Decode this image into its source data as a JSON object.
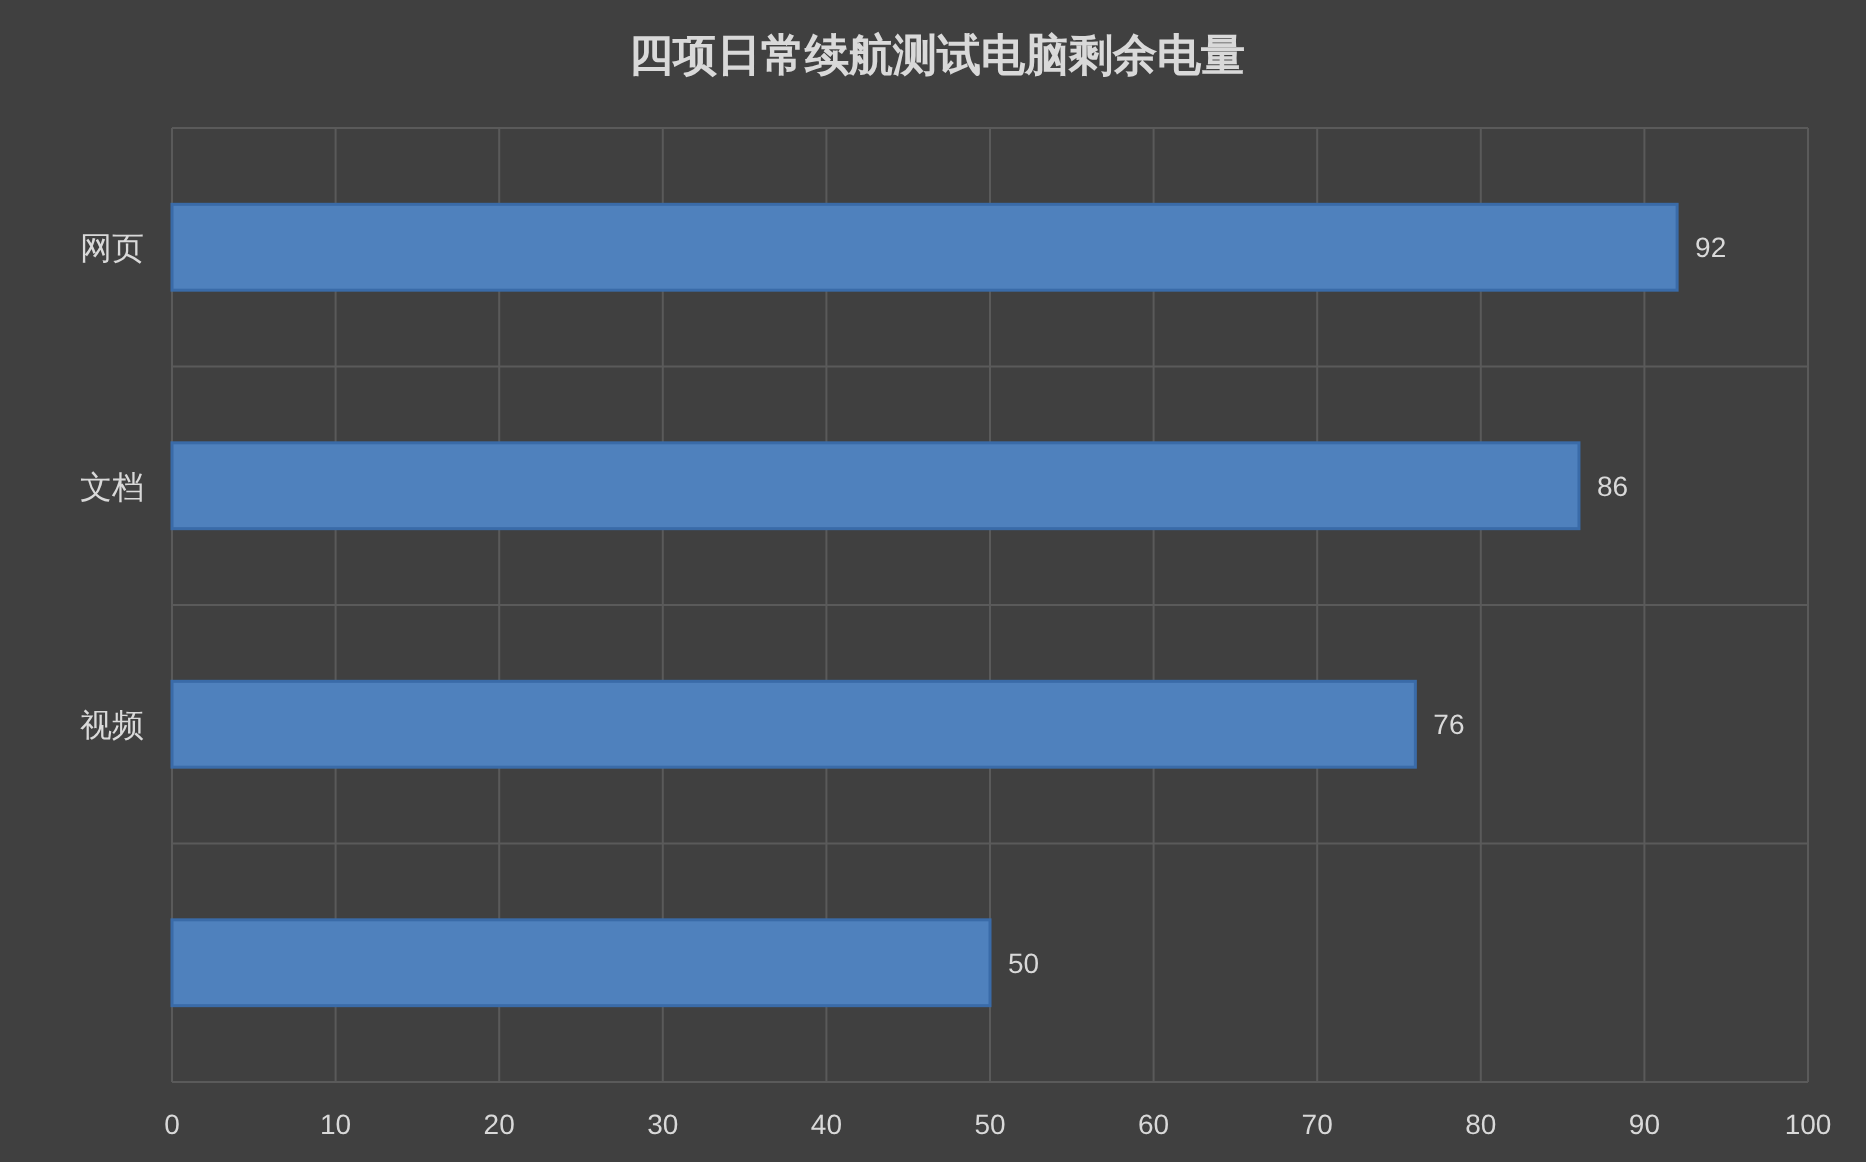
{
  "chart_data": {
    "type": "bar",
    "orientation": "horizontal",
    "title": "四项日常续航测试电脑剩余电量",
    "categories": [
      "网页",
      "文档",
      "视频",
      null
    ],
    "values": [
      92,
      86,
      76,
      50
    ],
    "color": "#4f81bd",
    "xlim": [
      0,
      100
    ],
    "xticks": [
      0,
      10,
      20,
      30,
      40,
      50,
      60,
      70,
      80,
      90,
      100
    ],
    "grid": true,
    "data_labels": true
  }
}
